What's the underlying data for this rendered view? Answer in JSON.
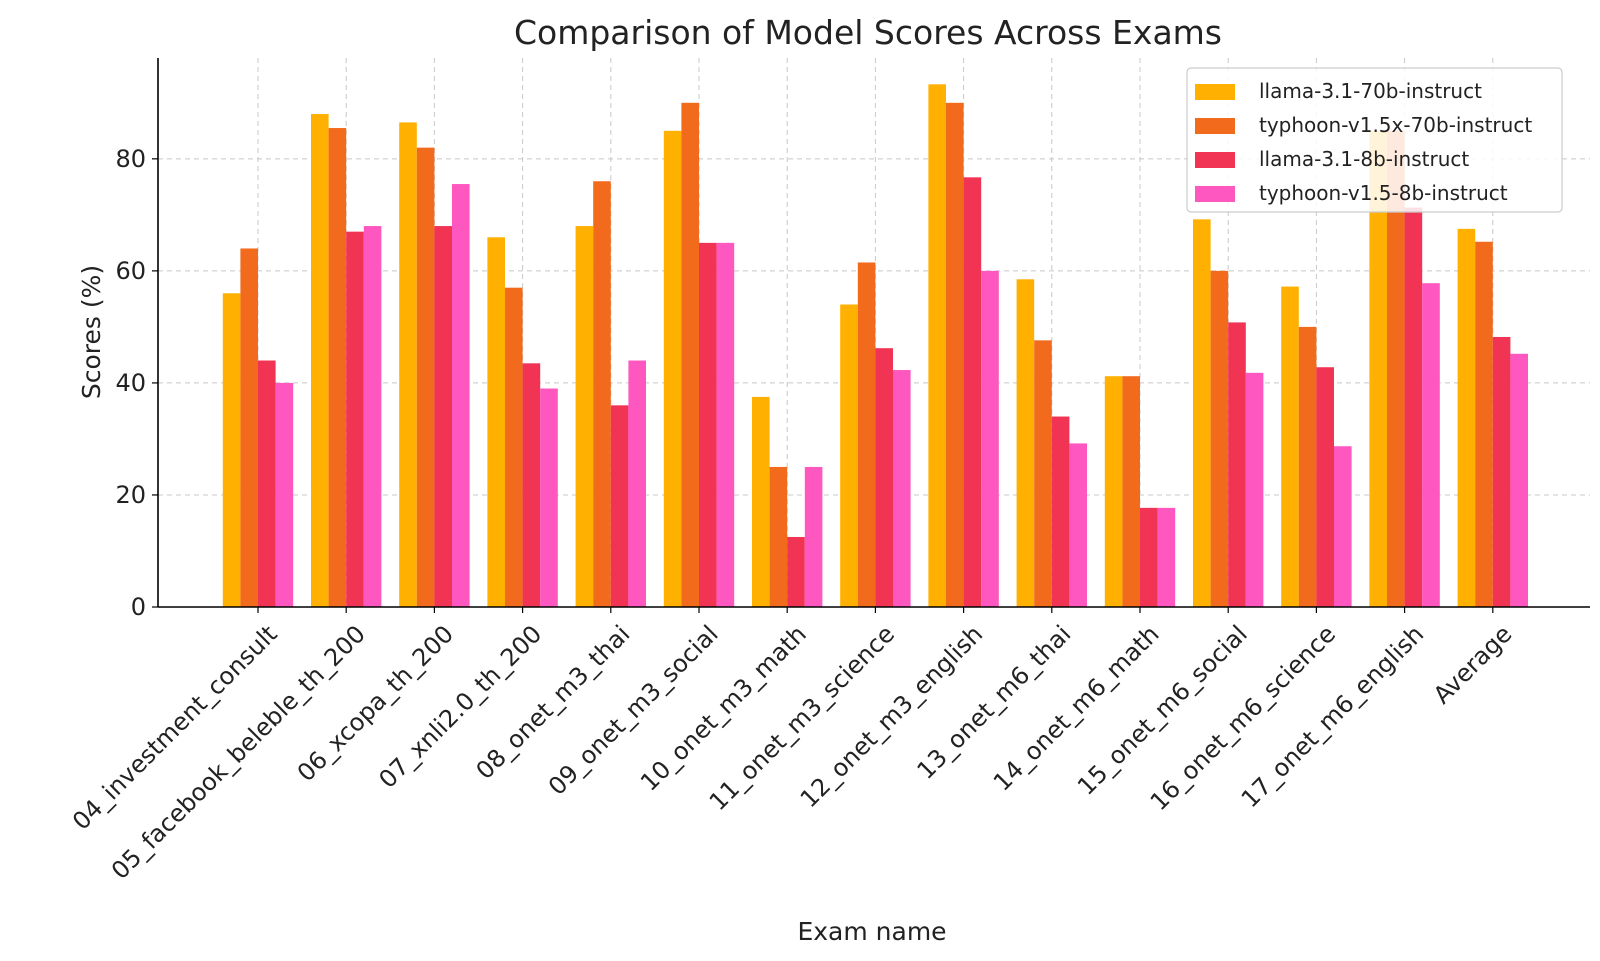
{
  "chart_data": {
    "type": "bar",
    "title": "Comparison of Model Scores Across Exams",
    "xlabel": "Exam name",
    "ylabel": "Scores (%)",
    "ylim": [
      0,
      98
    ],
    "yticks": [
      0,
      20,
      40,
      60,
      80
    ],
    "grid": true,
    "legend_position": "top-right",
    "categories": [
      "04_investment_consult",
      "05_facebook_beleble_th_200",
      "06_xcopa_th_200",
      "07_xnli2.0_th_200",
      "08_onet_m3_thai",
      "09_onet_m3_social",
      "10_onet_m3_math",
      "11_onet_m3_science",
      "12_onet_m3_english",
      "13_onet_m6_thai",
      "14_onet_m6_math",
      "15_onet_m6_social",
      "16_onet_m6_science",
      "17_onet_m6_english",
      "Average"
    ],
    "series": [
      {
        "name": "llama-3.1-70b-instruct",
        "color": "#FFB000",
        "values": [
          56,
          88,
          86.5,
          66,
          68,
          85,
          37.5,
          54,
          93.3,
          58.5,
          41.2,
          69.2,
          57.2,
          85,
          67.5
        ]
      },
      {
        "name": "typhoon-v1.5x-70b-instruct",
        "color": "#F26B1D",
        "values": [
          64,
          85.5,
          82,
          57,
          76,
          90,
          25,
          61.5,
          90,
          47.6,
          41.2,
          60,
          50,
          85,
          65.2
        ]
      },
      {
        "name": "llama-3.1-8b-instruct",
        "color": "#F13354",
        "values": [
          44,
          67,
          68,
          43.5,
          36,
          65,
          12.5,
          46.2,
          76.7,
          34,
          17.7,
          50.8,
          42.8,
          71.3,
          48.2
        ]
      },
      {
        "name": "typhoon-v1.5-8b-instruct",
        "color": "#FF57C0",
        "values": [
          40,
          68,
          75.5,
          39,
          44,
          65,
          25,
          42.3,
          60,
          29.2,
          17.7,
          41.8,
          28.7,
          57.8,
          45.2
        ]
      }
    ]
  }
}
